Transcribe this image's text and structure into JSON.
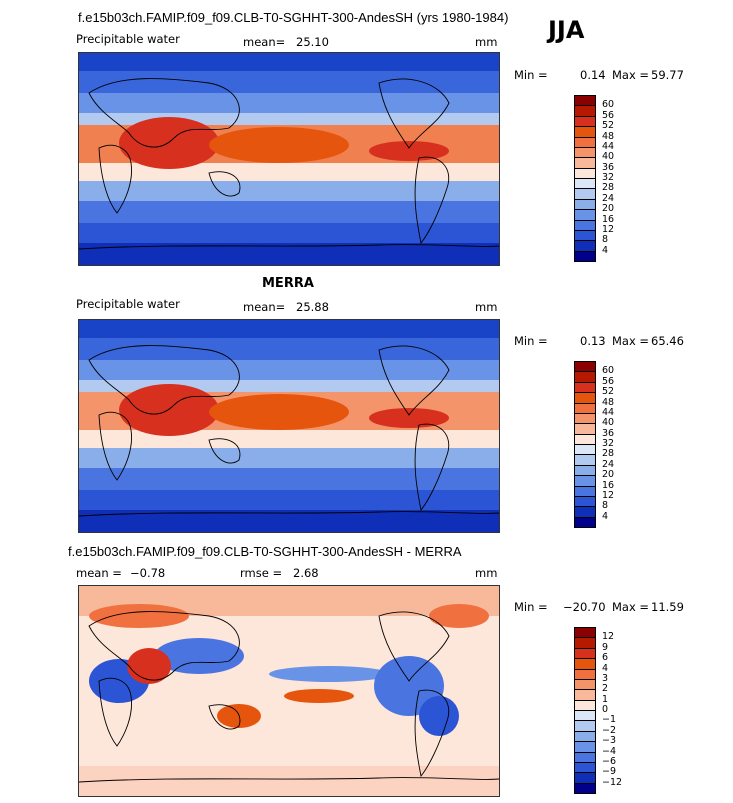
{
  "header": {
    "title": "f.e15b03ch.FAMIP.f09_f09.CLB-T0-SGHHT-300-AndesSH (yrs 1980-1984)",
    "season": "JJA"
  },
  "panel1": {
    "variable": "Precipitable water",
    "mean_label": "mean=",
    "mean_value": "25.10",
    "units": "mm",
    "min_label": "Min =",
    "min_value": "0.14",
    "max_label": "Max =",
    "max_value": "59.77"
  },
  "panel2": {
    "heading": "MERRA",
    "variable": "Precipitable water",
    "mean_label": "mean=",
    "mean_value": "25.88",
    "units": "mm",
    "min_label": "Min =",
    "min_value": "0.13",
    "max_label": "Max =",
    "max_value": "65.46"
  },
  "panel3": {
    "heading": "f.e15b03ch.FAMIP.f09_f09.CLB-T0-SGHHT-300-AndesSH - MERRA",
    "mean_label": "mean =",
    "mean_value": "−0.78",
    "rmse_label": "rmse =",
    "rmse_value": "2.68",
    "units": "mm",
    "min_label": "Min =",
    "min_value": "−20.70",
    "max_label": "Max =",
    "max_value": "11.59"
  },
  "colorbar_abs": {
    "labels": [
      "60",
      "56",
      "52",
      "48",
      "44",
      "40",
      "36",
      "32",
      "28",
      "24",
      "20",
      "16",
      "12",
      "8",
      "4"
    ],
    "colors": [
      "#8b0000",
      "#b51a00",
      "#d7301f",
      "#e6550d",
      "#f07040",
      "#f4946b",
      "#f8b99a",
      "#fde6da",
      "#dbe6f7",
      "#b3caf0",
      "#8aaeea",
      "#6993e6",
      "#4a75e0",
      "#2b55d4",
      "#0f2fb8",
      "#00008b"
    ]
  },
  "colorbar_diff": {
    "labels": [
      "12",
      "9",
      "6",
      "4",
      "3",
      "2",
      "1",
      "0",
      "−1",
      "−2",
      "−3",
      "−4",
      "−6",
      "−9",
      "−12"
    ],
    "colors": [
      "#8b0000",
      "#b51a00",
      "#d7301f",
      "#e6550d",
      "#f07040",
      "#f4946b",
      "#f8b99a",
      "#fde6da",
      "#dbe6f7",
      "#b3caf0",
      "#8aaeea",
      "#6993e6",
      "#4a75e0",
      "#2b55d4",
      "#0f2fb8",
      "#00008b"
    ]
  }
}
